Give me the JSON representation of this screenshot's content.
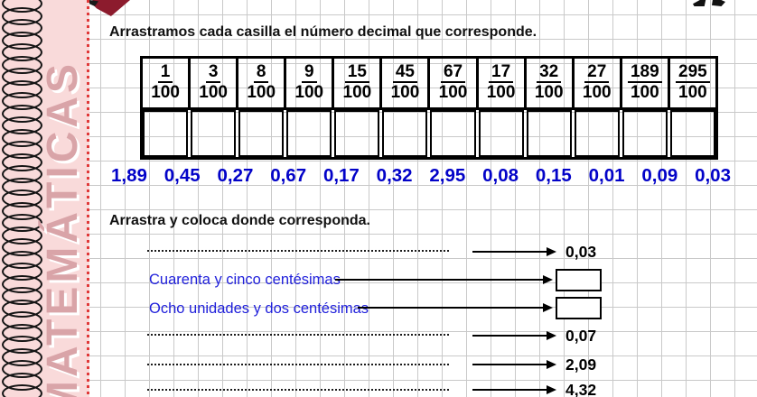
{
  "sidebar": {
    "vertical_text": "MATEMÁTICAS",
    "spiral_count": 33,
    "spiral_icon": "spiral-binding-icon"
  },
  "icons": {
    "top_left": "logo-wedge-icon",
    "top_right": "nav-arrows-icon"
  },
  "header": {
    "instruction1": "Arrastramos cada casilla el número decimal que corresponde.",
    "instruction2": "Arrastra y coloca donde corresponda."
  },
  "fraction_table": {
    "denominator": "100",
    "numerators": [
      "1",
      "3",
      "8",
      "9",
      "15",
      "45",
      "67",
      "17",
      "32",
      "27",
      "189",
      "295"
    ]
  },
  "decimal_chips": [
    "1,89",
    "0,45",
    "0,27",
    "0,67",
    "0,17",
    "0,32",
    "2,95",
    "0,08",
    "0,15",
    "0,01",
    "0,09",
    "0,03"
  ],
  "matching": {
    "rows": [
      {
        "type": "dotted",
        "target": "0,03"
      },
      {
        "type": "label",
        "label": "Cuarenta y cinco centésimas"
      },
      {
        "type": "label",
        "label": "Ocho unidades y dos centésimas"
      },
      {
        "type": "dotted",
        "target": "0,07"
      },
      {
        "type": "dotted",
        "target": "2,09"
      },
      {
        "type": "dotted",
        "target": "4,32"
      }
    ]
  },
  "colors": {
    "pink-bg": "#f9dada",
    "rose": "#d9a4a8",
    "maroon": "#8c1b2d",
    "blue-chip": "#0202c8",
    "blue-label": "#2121db",
    "grid": "#c9c9c9",
    "red-dot": "#e03838"
  }
}
